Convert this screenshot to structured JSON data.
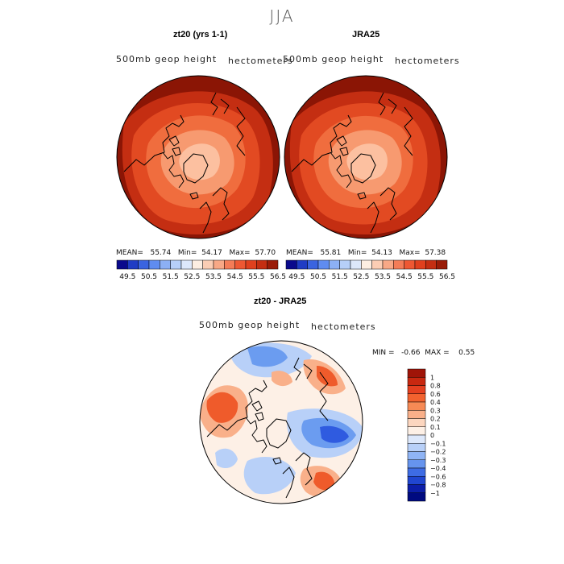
{
  "season": "JJA",
  "panels": [
    {
      "title": "zt20 (yrs 1-1)",
      "variable": "500mb geop height",
      "units": "hectometers",
      "stats": {
        "mean_label": "MEAN=",
        "mean": "55.74",
        "min_label": "Min=",
        "min": "54.17",
        "max_label": "Max=",
        "max": "57.70"
      }
    },
    {
      "title": "JRA25",
      "variable": "500mb geop height",
      "units": "hectometers",
      "stats": {
        "mean_label": "MEAN=",
        "mean": "55.81",
        "min_label": "Min=",
        "min": "54.13",
        "max_label": "Max=",
        "max": "57.38"
      }
    },
    {
      "title": "zt20 - JRA25",
      "variable": "500mb geop height",
      "units": "hectometers",
      "stats": {
        "min_label": "MIN =",
        "min": "-0.66",
        "max_label": "MAX =",
        "max": "0.55"
      }
    }
  ],
  "colorbar_top": {
    "labels": [
      "49.5",
      "50.5",
      "51.5",
      "52.5",
      "53.5",
      "54.5",
      "55.5",
      "56.5"
    ],
    "colors": [
      "#0a0a8c",
      "#1f3cc4",
      "#3a64e0",
      "#5f8cf0",
      "#8cb0f5",
      "#b6cff8",
      "#dde8fb",
      "#fdeee2",
      "#fbcdb4",
      "#f8a886",
      "#f47c57",
      "#ee5833",
      "#e0401e",
      "#c42e12",
      "#9a1c08"
    ]
  },
  "colorbar_diff": {
    "labels": [
      "1",
      "0.8",
      "0.6",
      "0.4",
      "0.3",
      "0.2",
      "0.1",
      "0",
      "−0.1",
      "−0.2",
      "−0.3",
      "−0.4",
      "−0.6",
      "−0.8",
      "−1"
    ],
    "colors": [
      "#a01408",
      "#c82810",
      "#e44020",
      "#f2622f",
      "#f78a55",
      "#f9b08a",
      "#fcd6bf",
      "#fdf0e6",
      "#dde8fb",
      "#b8d0f8",
      "#8fb4f5",
      "#6694ee",
      "#3e6ce4",
      "#2046d0",
      "#0c1ea8",
      "#000a80"
    ]
  },
  "map_colors": {
    "land_outline": "#000000",
    "ring1": "#8b1505",
    "ring2": "#c42e12",
    "ring3": "#e24a22",
    "ring4": "#f06d3e",
    "ring5": "#f79a70",
    "ring6": "#fcc0a0",
    "diff_zero": "#fdf0e6",
    "diff_pos_light": "#f9b08a",
    "diff_pos": "#ef5b2b",
    "diff_neg_light": "#b8d0f8",
    "diff_neg": "#6b9cf0",
    "diff_neg_strong": "#2f5be0"
  }
}
